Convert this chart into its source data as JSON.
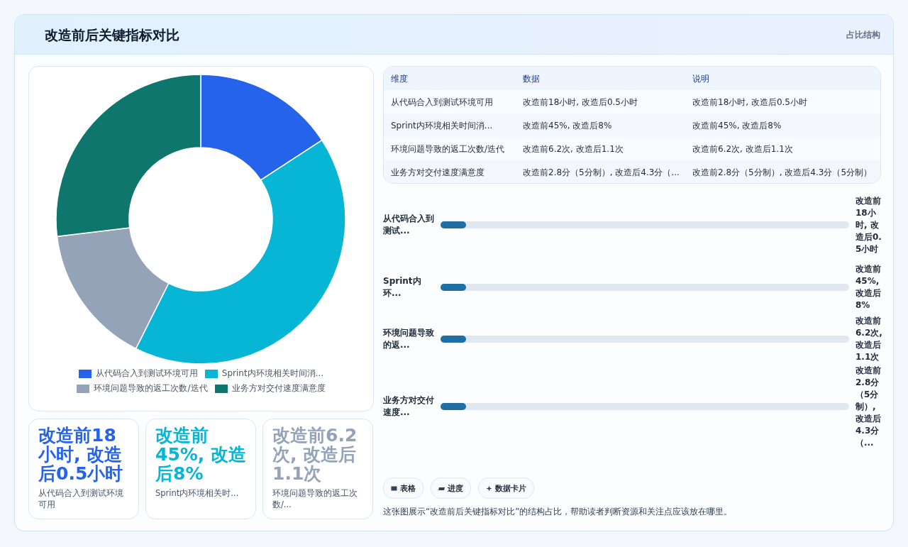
{
  "chart_data": [
    {
      "type": "other",
      "title": "改造前后关键指标对比",
      "subtitle": "占比结构"
    },
    {
      "type": "donut",
      "legend": "bottom",
      "categories": [
        "从代码合入到测试环境可用",
        "Sprint内环境相关时间消...",
        "环境问题导致的返工次数/迭代",
        "业务方对交付速度满意度"
      ],
      "values": [
        15.8,
        41.6,
        15.7,
        26.9
      ],
      "colors": [
        "#2563eb",
        "#06b6d4",
        "#94a3b8",
        "#0f766e"
      ]
    },
    {
      "type": "other",
      "annotations": [
        "维度",
        "数据",
        "说明",
        "从代码合入到测试环境可用",
        "改造前18小时, 改造后0.5小时",
        "改造前18小时, 改造后0.5小时",
        "Sprint内环境相关时间消...",
        "改造前45%, 改造后8%",
        "改造前45%, 改造后8%",
        "环境问题导致的返工次数/迭代",
        "改造前6.2次, 改造后1.1次",
        "改造前6.2次, 改造后1.1次",
        "业务方对交付速度满意度",
        "改造前2.8分（5分制）, 改造后4.3分（...",
        "改造前2.8分（5分制）, 改造后4.3分（5分制）"
      ]
    },
    {
      "type": "other",
      "annotations": [
        "从代码合入到测试...",
        "改造前18小时, 改造后0.5小时",
        "Sprint内环...",
        "改造前45%, 改造后8%",
        "环境问题导致的返...",
        "改造前6.2次, 改造后1.1次",
        "业务方对交付速度...",
        "改造前2.8分（5分制）, 改造后4.3分（..."
      ]
    },
    {
      "type": "other",
      "annotations": [
        "改造前18小时, 改造后0.5小时",
        "从代码合入到测试环境可用",
        "改造前45%, 改造后8%",
        "Sprint内环境相关时...",
        "改造前6.2次, 改造后1.1次",
        "环境问题导致的返工次数/..."
      ]
    },
    {
      "type": "other",
      "annotations": [
        "表格",
        "进度",
        "数据卡片",
        "这张图展示“改造前后关键指标对比”的结构占比，帮助读者判断资源和关注点应该放在哪里。"
      ]
    }
  ]
}
